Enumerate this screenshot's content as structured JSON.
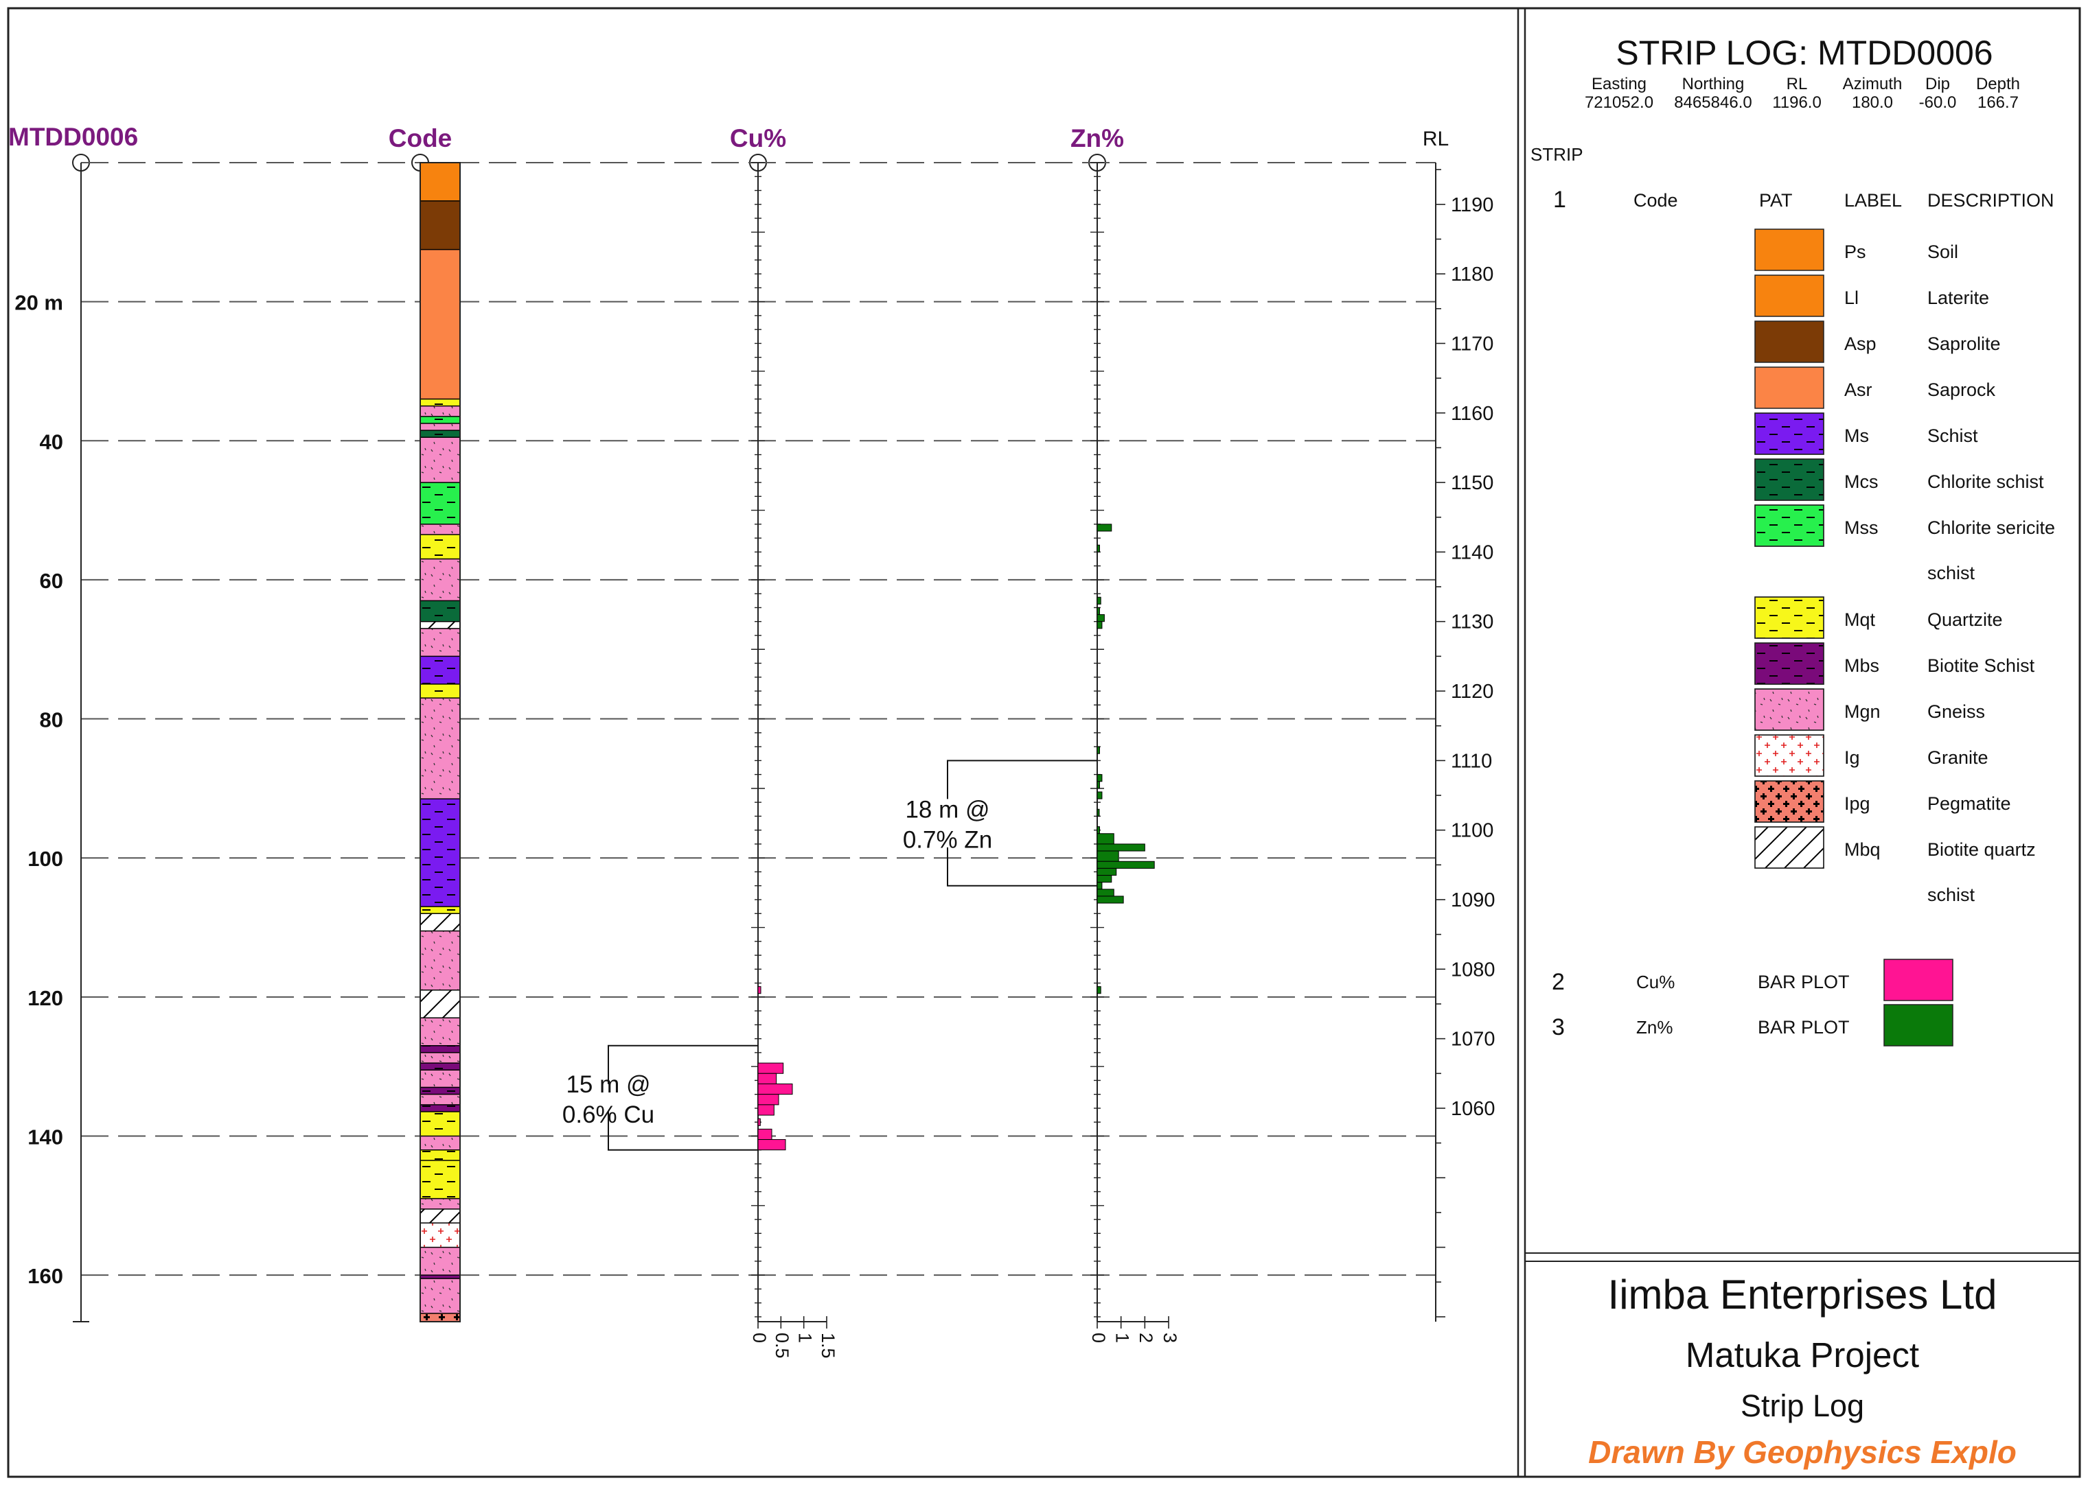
{
  "colors": {
    "header": "#7b1a7e",
    "title_footer": "#f0782a",
    "cu_bar": "#ff1493",
    "zn_bar": "#0a7a0a",
    "grid": "#555555",
    "frame": "#222222"
  },
  "chart_data": {
    "type": "strip-log",
    "hole_id": "MTDD0006",
    "depth_unit": "m",
    "depth_range": [
      0,
      166.7
    ],
    "rl_range": [
      1196.0,
      1029.3
    ],
    "columns": {
      "hole": "MTDD0006",
      "code": "Code",
      "cu": "Cu%",
      "zn": "Zn%",
      "rl": "RL"
    },
    "depth_ticks": [
      {
        "value": 20,
        "label": "20 m"
      },
      {
        "value": 40,
        "label": "40"
      },
      {
        "value": 60,
        "label": "60"
      },
      {
        "value": 80,
        "label": "80"
      },
      {
        "value": 100,
        "label": "100"
      },
      {
        "value": 120,
        "label": "120"
      },
      {
        "value": 140,
        "label": "140"
      },
      {
        "value": 160,
        "label": "160"
      }
    ],
    "rl_ticks": [
      1190,
      1180,
      1170,
      1160,
      1150,
      1140,
      1130,
      1120,
      1110,
      1100,
      1090,
      1080,
      1070,
      1060
    ],
    "cu_axis": {
      "range": [
        0,
        1.5
      ],
      "ticks": [
        "0",
        "0.5",
        "1",
        "1.5"
      ]
    },
    "zn_axis": {
      "range": [
        0,
        3
      ],
      "ticks": [
        "0",
        "1",
        "2",
        "3"
      ]
    },
    "lithology": [
      {
        "from": 0,
        "to": 5.5,
        "code": "Ll"
      },
      {
        "from": 5.5,
        "to": 12.5,
        "code": "Asp"
      },
      {
        "from": 12.5,
        "to": 34,
        "code": "Asr"
      },
      {
        "from": 34,
        "to": 35,
        "code": "Mqt"
      },
      {
        "from": 35,
        "to": 36.5,
        "code": "Mgn"
      },
      {
        "from": 36.5,
        "to": 37.5,
        "code": "Mss"
      },
      {
        "from": 37.5,
        "to": 38.5,
        "code": "Mgn"
      },
      {
        "from": 38.5,
        "to": 39.5,
        "code": "Mcs"
      },
      {
        "from": 39.5,
        "to": 46,
        "code": "Mgn"
      },
      {
        "from": 46,
        "to": 52,
        "code": "Mss"
      },
      {
        "from": 52,
        "to": 53.5,
        "code": "Mgn"
      },
      {
        "from": 53.5,
        "to": 57,
        "code": "Mqt"
      },
      {
        "from": 57,
        "to": 63,
        "code": "Mgn"
      },
      {
        "from": 63,
        "to": 66,
        "code": "Mcs"
      },
      {
        "from": 66,
        "to": 67,
        "code": "Mbq"
      },
      {
        "from": 67,
        "to": 71,
        "code": "Mgn"
      },
      {
        "from": 71,
        "to": 75,
        "code": "Ms"
      },
      {
        "from": 75,
        "to": 77,
        "code": "Mqt"
      },
      {
        "from": 77,
        "to": 91.5,
        "code": "Mgn"
      },
      {
        "from": 91.5,
        "to": 107,
        "code": "Ms"
      },
      {
        "from": 107,
        "to": 108,
        "code": "Mqt"
      },
      {
        "from": 108,
        "to": 110.5,
        "code": "Mbq"
      },
      {
        "from": 110.5,
        "to": 119,
        "code": "Mgn"
      },
      {
        "from": 119,
        "to": 123,
        "code": "Mbq"
      },
      {
        "from": 123,
        "to": 127,
        "code": "Mgn"
      },
      {
        "from": 127,
        "to": 128,
        "code": "Mbs"
      },
      {
        "from": 128,
        "to": 129.5,
        "code": "Mgn"
      },
      {
        "from": 129.5,
        "to": 130.5,
        "code": "Mbs"
      },
      {
        "from": 130.5,
        "to": 133,
        "code": "Mgn"
      },
      {
        "from": 133,
        "to": 134,
        "code": "Mbs"
      },
      {
        "from": 134,
        "to": 135.5,
        "code": "Mgn"
      },
      {
        "from": 135.5,
        "to": 136.5,
        "code": "Mbs"
      },
      {
        "from": 136.5,
        "to": 140,
        "code": "Mqt"
      },
      {
        "from": 140,
        "to": 142,
        "code": "Mgn"
      },
      {
        "from": 142,
        "to": 143.5,
        "code": "Mqt"
      },
      {
        "from": 143.5,
        "to": 149,
        "code": "Mqt"
      },
      {
        "from": 149,
        "to": 150.5,
        "code": "Mgn"
      },
      {
        "from": 150.5,
        "to": 152.5,
        "code": "Mbq"
      },
      {
        "from": 152.5,
        "to": 156,
        "code": "Ig"
      },
      {
        "from": 156,
        "to": 160,
        "code": "Mgn"
      },
      {
        "from": 160,
        "to": 160.5,
        "code": "Mbs"
      },
      {
        "from": 160.5,
        "to": 165.5,
        "code": "Mgn"
      },
      {
        "from": 165.5,
        "to": 166.7,
        "code": "Ipg"
      }
    ],
    "cu_series": [
      {
        "from": 118.5,
        "to": 119.5,
        "value": 0.06
      },
      {
        "from": 129.5,
        "to": 131,
        "value": 0.55
      },
      {
        "from": 131,
        "to": 132.5,
        "value": 0.4
      },
      {
        "from": 132.5,
        "to": 134,
        "value": 0.75
      },
      {
        "from": 134,
        "to": 135.5,
        "value": 0.45
      },
      {
        "from": 135.5,
        "to": 137,
        "value": 0.35
      },
      {
        "from": 137.5,
        "to": 138.5,
        "value": 0.05
      },
      {
        "from": 139,
        "to": 140.5,
        "value": 0.3
      },
      {
        "from": 140.5,
        "to": 142,
        "value": 0.6
      }
    ],
    "zn_series": [
      {
        "from": 52,
        "to": 53,
        "value": 0.6
      },
      {
        "from": 55,
        "to": 56,
        "value": 0.1
      },
      {
        "from": 62.5,
        "to": 63.5,
        "value": 0.15
      },
      {
        "from": 64,
        "to": 65,
        "value": 0.1
      },
      {
        "from": 65,
        "to": 66,
        "value": 0.3
      },
      {
        "from": 66,
        "to": 67,
        "value": 0.2
      },
      {
        "from": 84,
        "to": 85,
        "value": 0.1
      },
      {
        "from": 88,
        "to": 89,
        "value": 0.2
      },
      {
        "from": 89,
        "to": 90,
        "value": 0.1
      },
      {
        "from": 90.5,
        "to": 91.5,
        "value": 0.2
      },
      {
        "from": 93,
        "to": 94,
        "value": 0.05
      },
      {
        "from": 95.5,
        "to": 96.5,
        "value": 0.1
      },
      {
        "from": 96.5,
        "to": 98,
        "value": 0.7
      },
      {
        "from": 98,
        "to": 99,
        "value": 2.0
      },
      {
        "from": 99,
        "to": 100.5,
        "value": 0.9
      },
      {
        "from": 100.5,
        "to": 101.5,
        "value": 2.4
      },
      {
        "from": 101.5,
        "to": 102.5,
        "value": 0.8
      },
      {
        "from": 102.5,
        "to": 103.5,
        "value": 0.6
      },
      {
        "from": 103.5,
        "to": 104.5,
        "value": 0.2
      },
      {
        "from": 104.5,
        "to": 105.5,
        "value": 0.7
      },
      {
        "from": 105.5,
        "to": 106.5,
        "value": 1.1
      },
      {
        "from": 118.5,
        "to": 119.5,
        "value": 0.15
      }
    ],
    "annotations": [
      {
        "target": "zn",
        "from": 86,
        "to": 104,
        "line1": "18 m @",
        "line2": "0.7% Zn"
      },
      {
        "target": "cu",
        "from": 127,
        "to": 142,
        "line1": "15 m @",
        "line2": "0.6% Cu"
      }
    ]
  },
  "info": {
    "title": "STRIP LOG: MTDD0006",
    "collar": [
      {
        "label": "Easting",
        "value": "721052.0"
      },
      {
        "label": "Northing",
        "value": "8465846.0"
      },
      {
        "label": "RL",
        "value": "1196.0"
      },
      {
        "label": "Azimuth",
        "value": "180.0"
      },
      {
        "label": "Dip",
        "value": "-60.0"
      },
      {
        "label": "Depth",
        "value": "166.7"
      }
    ]
  },
  "legend": {
    "strip_heading": "STRIP",
    "strip_number": "1",
    "strip_name": "Code",
    "col_pat": "PAT",
    "col_label": "LABEL",
    "col_desc": "DESCRIPTION",
    "items": [
      {
        "code": "Ps",
        "line1": "Soil",
        "line2": ""
      },
      {
        "code": "Ll",
        "line1": "Laterite",
        "line2": ""
      },
      {
        "code": "Asp",
        "line1": "Saprolite",
        "line2": ""
      },
      {
        "code": "Asr",
        "line1": "Saprock",
        "line2": ""
      },
      {
        "code": "Ms",
        "line1": "Schist",
        "line2": ""
      },
      {
        "code": "Mcs",
        "line1": "Chlorite schist",
        "line2": ""
      },
      {
        "code": "Mss",
        "line1": "Chlorite sericite",
        "line2": "schist"
      },
      {
        "code": "Mqt",
        "line1": "Quartzite",
        "line2": ""
      },
      {
        "code": "Mbs",
        "line1": "Biotite Schist",
        "line2": ""
      },
      {
        "code": "Mgn",
        "line1": "Gneiss",
        "line2": ""
      },
      {
        "code": "Ig",
        "line1": "Granite",
        "line2": ""
      },
      {
        "code": "Ipg",
        "line1": "Pegmatite",
        "line2": ""
      },
      {
        "code": "Mbq",
        "line1": "Biotite quartz",
        "line2": "schist"
      }
    ],
    "bar_items": [
      {
        "number": "2",
        "name": "Cu%",
        "type": "BAR PLOT",
        "key": "cu_bar"
      },
      {
        "number": "3",
        "name": "Zn%",
        "type": "BAR PLOT",
        "key": "zn_bar"
      }
    ]
  },
  "lithology_styles": {
    "Ps": {
      "fill": "#f7830f",
      "pattern": "none"
    },
    "Ll": {
      "fill": "#f7830f",
      "pattern": "none"
    },
    "Asp": {
      "fill": "#7c3b06",
      "pattern": "none"
    },
    "Asr": {
      "fill": "#fb8446",
      "pattern": "none"
    },
    "Ms": {
      "fill": "#7a1bf0",
      "pattern": "dash"
    },
    "Mcs": {
      "fill": "#0a6b3a",
      "pattern": "dash"
    },
    "Mss": {
      "fill": "#27f04d",
      "pattern": "dash"
    },
    "Mqt": {
      "fill": "#f7f71a",
      "pattern": "dash"
    },
    "Mbs": {
      "fill": "#7a0a7a",
      "pattern": "dash"
    },
    "Mgn": {
      "fill": "#f68bc6",
      "pattern": "speck"
    },
    "Ig": {
      "fill": "#ffffff",
      "pattern": "cross-red"
    },
    "Ipg": {
      "fill": "#f37f6e",
      "pattern": "cross-black"
    },
    "Mbq": {
      "fill": "#ffffff",
      "pattern": "hatch"
    }
  },
  "footer": {
    "company": "Iimba Enterprises Ltd",
    "project": "Matuka Project",
    "doc_type": "Strip Log",
    "credit": "Drawn By Geophysics Explo"
  }
}
